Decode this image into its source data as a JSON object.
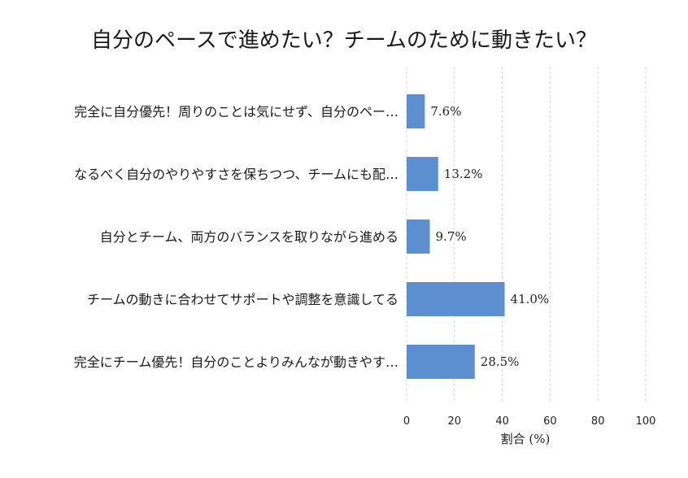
{
  "chart_data": {
    "type": "bar",
    "orientation": "horizontal",
    "title": "自分のペースで進めたい？チームのために動きたい？",
    "categories": [
      "完全に自分優先！周りのことは気にせず、自分のペー…",
      "なるべく自分のやりやすさを保ちつつ、チームにも配…",
      "自分とチーム、両方のバランスを取りながら進める",
      "チームの動きに合わせてサポートや調整を意識してる",
      "完全にチーム優先！自分のことよりみんなが動きやす…"
    ],
    "values": [
      7.6,
      13.2,
      9.7,
      41.0,
      28.5
    ],
    "value_labels": [
      "7.6%",
      "13.2%",
      "9.7%",
      "41.0%",
      "28.5%"
    ],
    "xlabel": "割合 (%)",
    "ylabel": "",
    "xlim": [
      0,
      100
    ],
    "xticks": [
      0,
      20,
      40,
      60,
      80,
      100
    ],
    "grid": "vertical-dashed",
    "bar_color": "#5b8fd0",
    "grid_color": "#cccccc"
  }
}
